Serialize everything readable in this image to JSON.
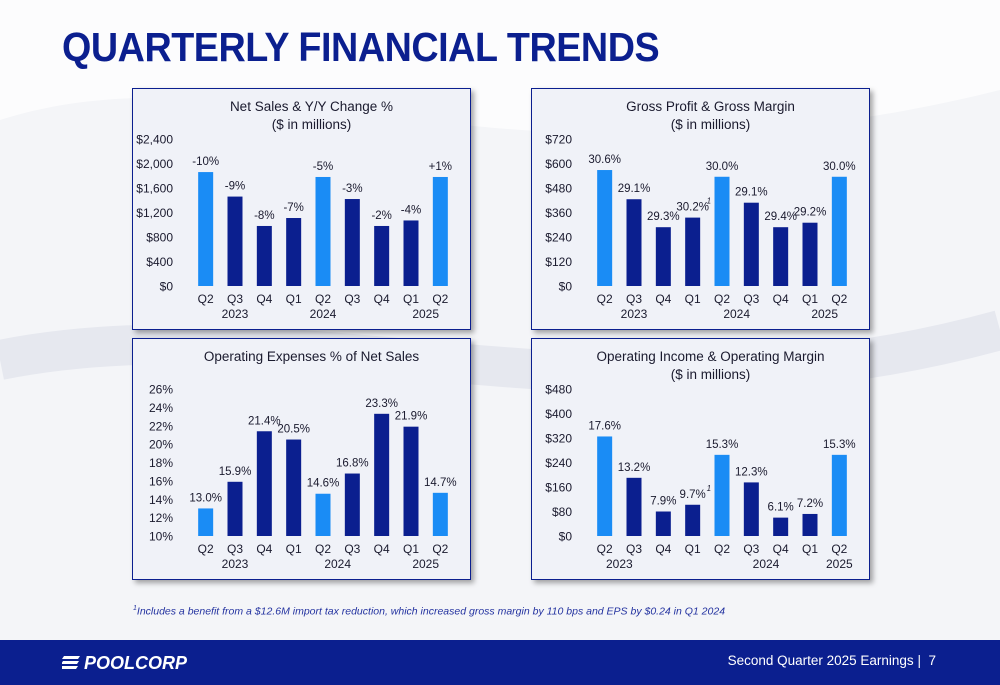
{
  "page_title": "QUARTERLY FINANCIAL TRENDS",
  "footnote_marker": "1",
  "footnote": "Includes a benefit from a $12.6M import tax reduction, which increased gross margin by 110 bps and EPS by $0.24 in Q1 2024",
  "footer": {
    "text": "Second Quarter 2025 Earnings",
    "separator": "|",
    "page": "7",
    "logo_text": "POOLCORP"
  },
  "colors": {
    "navy": "#0b1f8f",
    "highlight": "#1a8cf5",
    "title": "#0b1f8f"
  },
  "chart_data": [
    {
      "id": "net-sales",
      "type": "bar",
      "title": "Net Sales & Y/Y Change %",
      "subtitle": "($ in millions)",
      "categories": [
        "Q2",
        "Q3",
        "Q4",
        "Q1",
        "Q2",
        "Q3",
        "Q4",
        "Q1",
        "Q2"
      ],
      "years": [
        {
          "label": "2023",
          "at": 1
        },
        {
          "label": "2024",
          "at": 4
        },
        {
          "label": "2025",
          "at": 7.5
        }
      ],
      "values": [
        1860,
        1460,
        980,
        1110,
        1780,
        1420,
        980,
        1070,
        1780
      ],
      "labels": [
        "-10%",
        "-9%",
        "-8%",
        "-7%",
        "-5%",
        "-3%",
        "-2%",
        "-4%",
        "+1%"
      ],
      "highlight": [
        0,
        4,
        8
      ],
      "yticks": [
        "$0",
        "$400",
        "$800",
        "$1,200",
        "$1,600",
        "$2,000",
        "$2,400"
      ],
      "ylim": [
        0,
        2400
      ],
      "grid": false
    },
    {
      "id": "gross-profit",
      "type": "bar",
      "title": "Gross Profit & Gross Margin",
      "subtitle": "($ in millions)",
      "categories": [
        "Q2",
        "Q3",
        "Q4",
        "Q1",
        "Q2",
        "Q3",
        "Q4",
        "Q1",
        "Q2"
      ],
      "years": [
        {
          "label": "2023",
          "at": 1
        },
        {
          "label": "2024",
          "at": 4.5
        },
        {
          "label": "2025",
          "at": 7.5
        }
      ],
      "values": [
        568,
        425,
        288,
        335,
        535,
        408,
        288,
        310,
        535
      ],
      "labels": [
        "30.6%",
        "29.1%",
        "29.3%",
        "30.2%",
        "30.0%",
        "29.1%",
        "29.4%",
        "29.2%",
        "30.0%"
      ],
      "label_marker_index": 3,
      "label_marker": "1",
      "highlight": [
        0,
        4,
        8
      ],
      "yticks": [
        "$0",
        "$120",
        "$240",
        "$360",
        "$480",
        "$600",
        "$720"
      ],
      "ylim": [
        0,
        720
      ],
      "grid": false
    },
    {
      "id": "operating-expenses",
      "type": "bar",
      "title": "Operating Expenses % of Net Sales",
      "subtitle": "",
      "categories": [
        "Q2",
        "Q3",
        "Q4",
        "Q1",
        "Q2",
        "Q3",
        "Q4",
        "Q1",
        "Q2"
      ],
      "years": [
        {
          "label": "2023",
          "at": 1
        },
        {
          "label": "2024",
          "at": 4.5
        },
        {
          "label": "2025",
          "at": 7.5
        }
      ],
      "values": [
        13.0,
        15.9,
        21.4,
        20.5,
        14.6,
        16.8,
        23.3,
        21.9,
        14.7
      ],
      "labels": [
        "13.0%",
        "15.9%",
        "21.4%",
        "20.5%",
        "14.6%",
        "16.8%",
        "23.3%",
        "21.9%",
        "14.7%"
      ],
      "highlight": [
        0,
        4,
        8
      ],
      "yticks": [
        "10%",
        "12%",
        "14%",
        "16%",
        "18%",
        "20%",
        "22%",
        "24%",
        "26%"
      ],
      "ylim": [
        10,
        26
      ],
      "grid": false
    },
    {
      "id": "operating-income",
      "type": "bar",
      "title": "Operating Income & Operating Margin",
      "subtitle": "($ in millions)",
      "categories": [
        "Q2",
        "Q3",
        "Q4",
        "Q1",
        "Q2",
        "Q3",
        "Q4",
        "Q1",
        "Q2"
      ],
      "years": [
        {
          "label": "2023",
          "at": 0.5
        },
        {
          "label": "2024",
          "at": 5.5
        },
        {
          "label": "2025",
          "at": 8
        }
      ],
      "values": [
        325,
        190,
        80,
        102,
        265,
        175,
        60,
        72,
        265
      ],
      "labels": [
        "17.6%",
        "13.2%",
        "7.9%",
        "9.7%",
        "15.3%",
        "12.3%",
        "6.1%",
        "7.2%",
        "15.3%"
      ],
      "label_marker_index": 3,
      "label_marker": "1",
      "highlight": [
        0,
        4,
        8
      ],
      "yticks": [
        "$0",
        "$80",
        "$160",
        "$240",
        "$320",
        "$400",
        "$480"
      ],
      "ylim": [
        0,
        480
      ],
      "grid": false
    }
  ]
}
